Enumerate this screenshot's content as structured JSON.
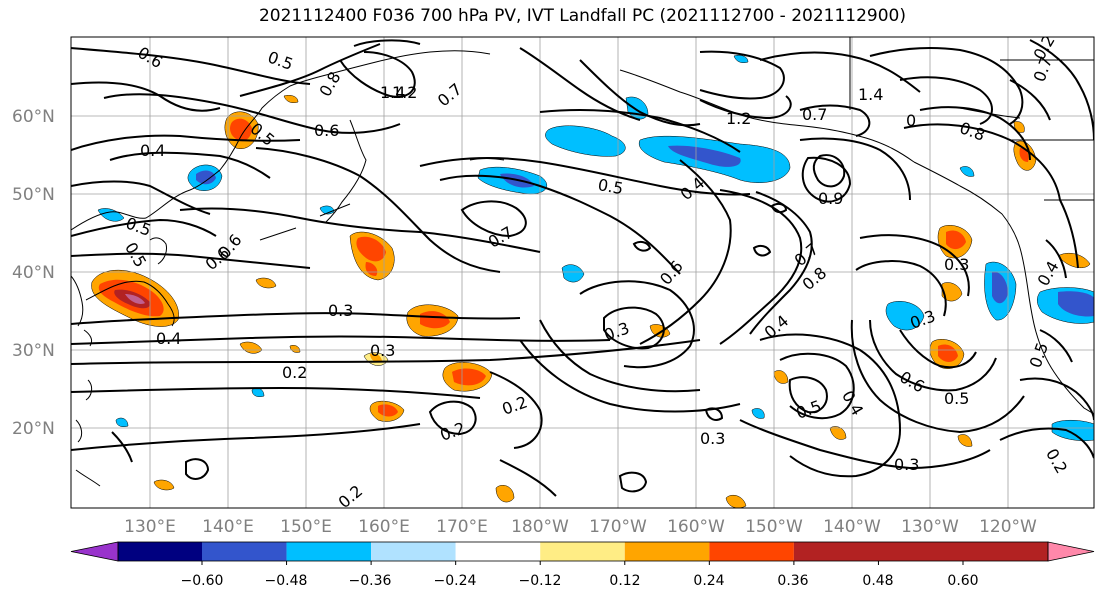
{
  "title": "2021112400 F036 700 hPa PV, IVT Landfall PC (2021112700 - 2021112900)",
  "lat_labels": [
    "60°N",
    "50°N",
    "40°N",
    "30°N",
    "20°N"
  ],
  "lon_labels": [
    "130°E",
    "140°E",
    "150°E",
    "160°E",
    "170°E",
    "180°W",
    "170°W",
    "160°W",
    "150°W",
    "140°W",
    "130°W",
    "120°W"
  ],
  "contour_labels": [
    "0.6",
    "0.5",
    "0.8",
    "1.4",
    "1.2",
    "0.7",
    "0.5",
    "0.6",
    "0.4",
    "0.5",
    "0.6",
    "0.5",
    "0.6",
    "0.5",
    "0.7",
    "0.3",
    "0.3",
    "0.2",
    "0.2",
    "0.2",
    "0.2",
    "0.3",
    "0.4",
    "0.6",
    "1.2",
    "0.7",
    "0.9",
    "0.7",
    "0.8",
    "0.4",
    "0.3",
    "0.3",
    "0.6",
    "0.5",
    "0.5",
    "0.4",
    "0.3",
    "0.3",
    "1.4",
    "0",
    "0.8",
    "0.2",
    "0.4",
    "0.5",
    "0.2",
    "0.7",
    "0.4"
  ],
  "colorbar": {
    "ticks": [
      "−0.60",
      "−0.48",
      "−0.36",
      "−0.24",
      "−0.12",
      "0.12",
      "0.24",
      "0.36",
      "0.48",
      "0.60"
    ],
    "colors": [
      "#9933cc",
      "#000080",
      "#3355cc",
      "#00bfff",
      "#b0e2ff",
      "#ffffff",
      "#ffed85",
      "#ffa500",
      "#ff4500",
      "#b22222",
      "#ff88aa"
    ]
  }
}
